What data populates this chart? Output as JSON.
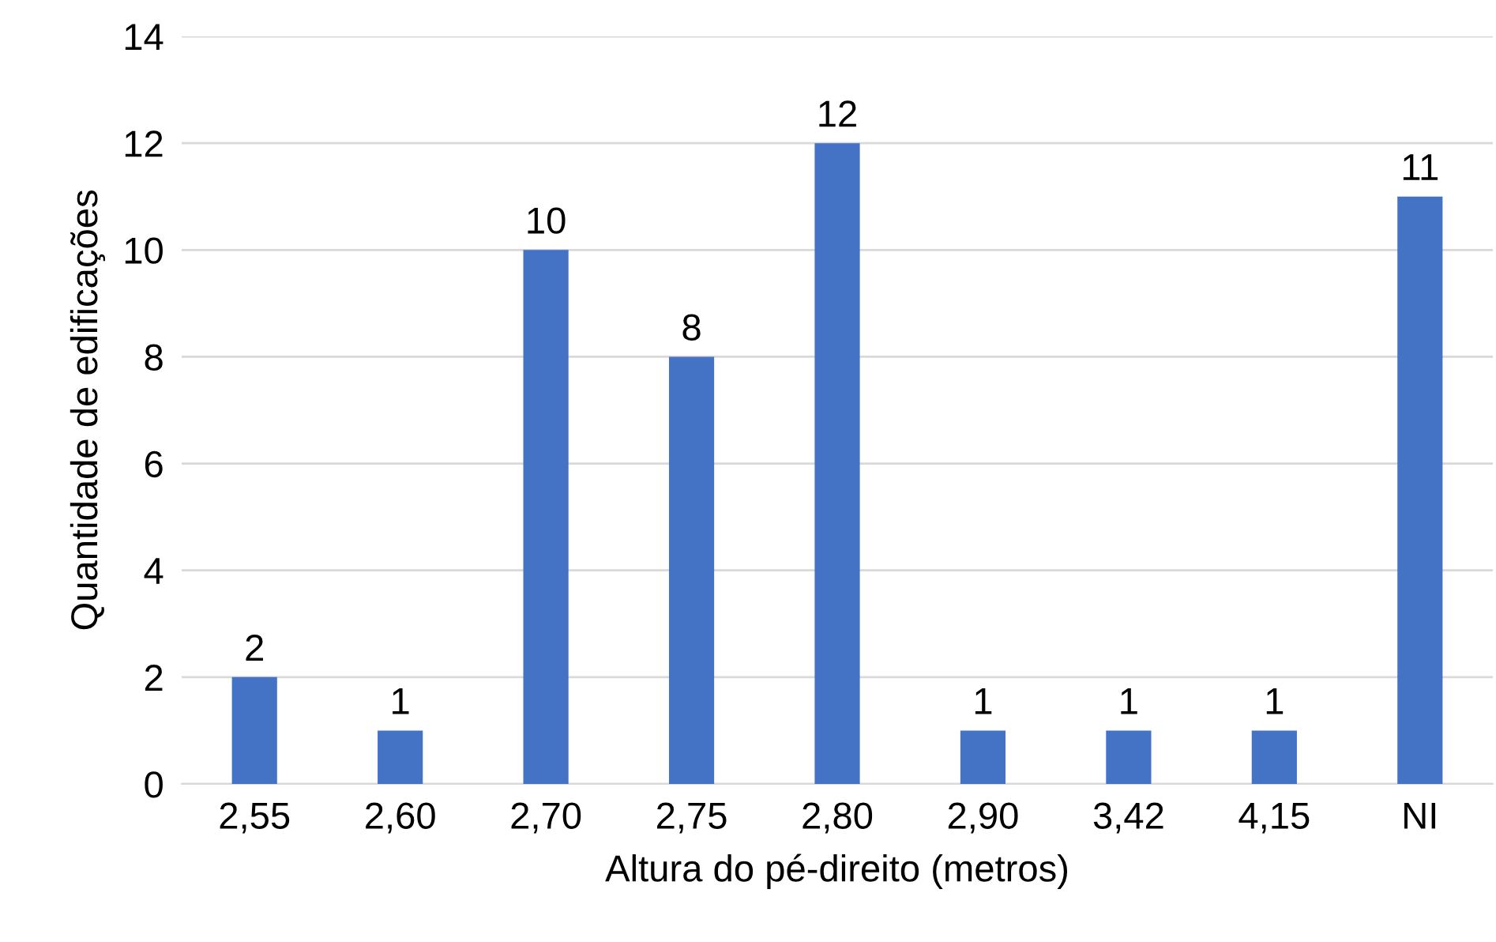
{
  "chart_data": {
    "type": "bar",
    "xlabel": "Altura do pé-direito (metros)",
    "ylabel": "Quantidade de edificações",
    "categories": [
      "2,55",
      "2,60",
      "2,70",
      "2,75",
      "2,80",
      "2,90",
      "3,42",
      "4,15",
      "NI"
    ],
    "values": [
      2,
      1,
      10,
      8,
      12,
      1,
      1,
      1,
      11
    ],
    "color": "#4472c4",
    "ylim": [
      0,
      14
    ],
    "yticks": [
      0,
      2,
      4,
      6,
      8,
      10,
      12,
      14
    ],
    "grid": "y",
    "data_labels": true
  }
}
